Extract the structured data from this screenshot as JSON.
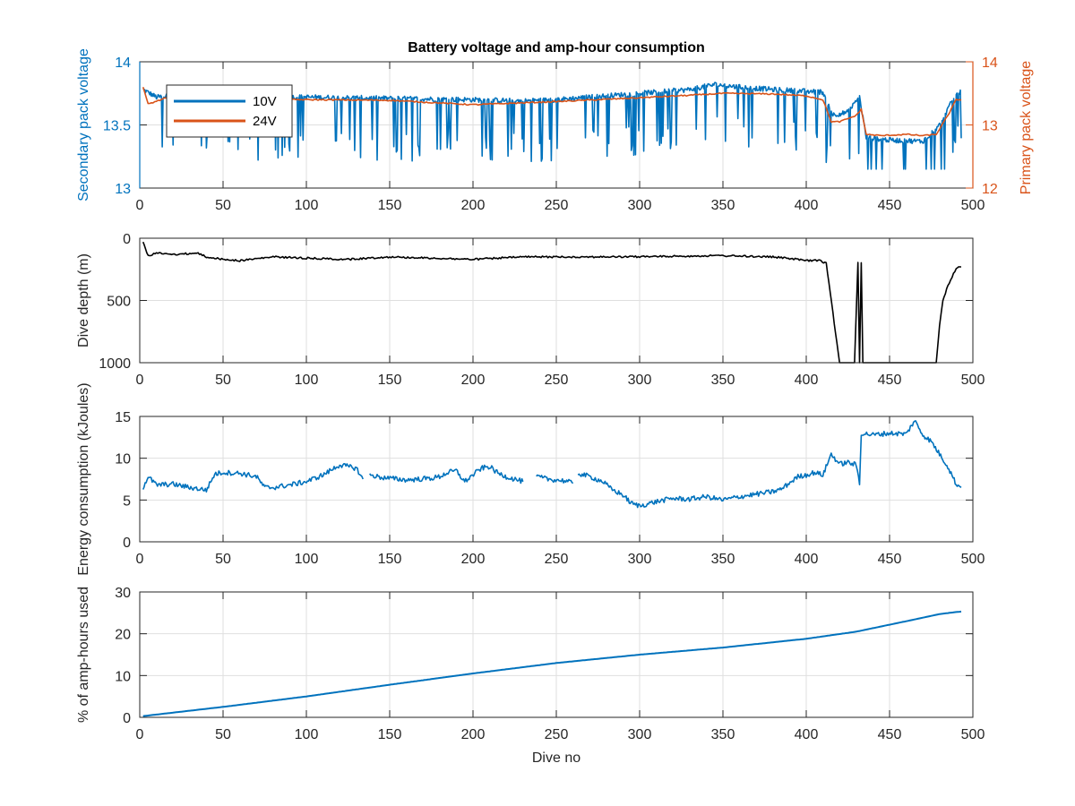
{
  "colors": {
    "blue": "#0072BD",
    "orange": "#D95319",
    "black": "#000000",
    "grid": "#dfdfdf",
    "axis": "#262626"
  },
  "chart_data": [
    {
      "id": "voltage",
      "type": "line",
      "title": "Battery voltage and amp-hour consumption",
      "xlabel": "",
      "ylabel": "Secondary pack voltage",
      "ylabel_right": "Primary pack voltage",
      "xlim": [
        0,
        500
      ],
      "ylim": [
        13,
        14
      ],
      "ylim_right": [
        12,
        14
      ],
      "xticks": [
        0,
        50,
        100,
        150,
        200,
        250,
        300,
        350,
        400,
        450,
        500
      ],
      "yticks": [
        13,
        13.5,
        14
      ],
      "yticks_right": [
        12,
        13,
        14
      ],
      "grid": true,
      "legend": {
        "position": "top-left",
        "entries": [
          "10V",
          "24V"
        ]
      },
      "series": [
        {
          "name": "10V",
          "axis": "left",
          "color": "#0072BD",
          "style": "spiky",
          "x": [
            2,
            10,
            20,
            40,
            60,
            100,
            150,
            200,
            230,
            250,
            300,
            330,
            345,
            360,
            380,
            410,
            416,
            425,
            432,
            436,
            450,
            470,
            480,
            490,
            493
          ],
          "y": [
            13.78,
            13.72,
            13.73,
            13.72,
            13.72,
            13.72,
            13.71,
            13.7,
            13.69,
            13.7,
            13.75,
            13.78,
            13.82,
            13.8,
            13.78,
            13.76,
            13.58,
            13.6,
            13.72,
            13.4,
            13.38,
            13.37,
            13.5,
            13.75,
            13.76
          ],
          "dips": [
            [
              13,
              13.75
            ],
            [
              220,
              13.38
            ],
            [
              330,
              13.42
            ],
            [
              360,
              13.3
            ],
            [
              380,
              13.28
            ],
            [
              430,
              13.38
            ]
          ]
        },
        {
          "name": "24V",
          "axis": "right",
          "color": "#D95319",
          "style": "smooth",
          "x": [
            2,
            5,
            15,
            30,
            60,
            100,
            150,
            200,
            250,
            300,
            330,
            350,
            380,
            400,
            410,
            415,
            420,
            430,
            433,
            436,
            445,
            460,
            470,
            478,
            485,
            490,
            493
          ],
          "y": [
            13.6,
            13.33,
            13.42,
            13.42,
            13.4,
            13.4,
            13.39,
            13.32,
            13.37,
            13.43,
            13.47,
            13.5,
            13.49,
            13.46,
            13.4,
            13.05,
            13.05,
            13.15,
            13.25,
            12.85,
            12.83,
            12.85,
            12.83,
            12.85,
            13.15,
            13.4,
            13.4
          ]
        }
      ]
    },
    {
      "id": "depth",
      "type": "line",
      "title": "",
      "xlabel": "",
      "ylabel": "Dive depth (m)",
      "xlim": [
        0,
        500
      ],
      "ylim": [
        0,
        1000
      ],
      "y_reversed": true,
      "xticks": [
        0,
        50,
        100,
        150,
        200,
        250,
        300,
        350,
        400,
        450,
        500
      ],
      "yticks": [
        0,
        500,
        1000
      ],
      "grid": true,
      "series": [
        {
          "name": "",
          "color": "#000000",
          "x": [
            2,
            5,
            10,
            20,
            35,
            40,
            50,
            60,
            80,
            100,
            125,
            150,
            175,
            200,
            230,
            260,
            290,
            320,
            350,
            380,
            395,
            400,
            408,
            412,
            420,
            422,
            428,
            429,
            431,
            432,
            433,
            434,
            435,
            440,
            450,
            470,
            478,
            480,
            482,
            485,
            490,
            493
          ],
          "y": [
            30,
            140,
            120,
            130,
            120,
            150,
            170,
            180,
            150,
            160,
            170,
            150,
            160,
            170,
            150,
            150,
            150,
            145,
            140,
            150,
            170,
            180,
            180,
            200,
            1000,
            1000,
            1000,
            1000,
            200,
            1000,
            200,
            1000,
            1000,
            1000,
            1000,
            1000,
            1000,
            700,
            500,
            380,
            240,
            230
          ]
        }
      ]
    },
    {
      "id": "energy",
      "type": "line",
      "title": "",
      "xlabel": "",
      "ylabel": "Energy consumption (kJoules)",
      "xlim": [
        0,
        500
      ],
      "ylim": [
        0,
        15
      ],
      "xticks": [
        0,
        50,
        100,
        150,
        200,
        250,
        300,
        350,
        400,
        450,
        500
      ],
      "yticks": [
        0,
        5,
        10,
        15
      ],
      "grid": true,
      "series": [
        {
          "name": "",
          "color": "#0072BD",
          "segments": [
            {
              "x": [
                2,
                5,
                10,
                20,
                30,
                40,
                45,
                50,
                60,
                70,
                75,
                80,
                90,
                100,
                110,
                120,
                125,
                130,
                134
              ],
              "y": [
                6.5,
                7.8,
                6.8,
                6.9,
                6.5,
                6.2,
                8.1,
                8.3,
                8.2,
                7.8,
                6.5,
                6.5,
                6.8,
                7.2,
                8.0,
                9.2,
                9.0,
                8.8,
                7.5
              ]
            },
            {
              "x": [
                138,
                145,
                160,
                175,
                180,
                185,
                190,
                195,
                205,
                210,
                215,
                220,
                230
              ],
              "y": [
                8.0,
                7.7,
                7.4,
                7.6,
                7.8,
                8.3,
                8.5,
                7.2,
                8.8,
                9.0,
                8.2,
                7.8,
                7.2
              ]
            },
            {
              "x": [
                238,
                245,
                255,
                260
              ],
              "y": [
                7.8,
                7.5,
                7.3,
                7.0
              ]
            },
            {
              "x": [
                263,
                270,
                278,
                283,
                290,
                295,
                300,
                310,
                320,
                330,
                340,
                350,
                360,
                370,
                380,
                385,
                395,
                400,
                405,
                410,
                415,
                420,
                425,
                430,
                432,
                433,
                440,
                450,
                460,
                465,
                470,
                475,
                480,
                485,
                490,
                493
              ],
              "y": [
                8.2,
                7.8,
                7.2,
                6.3,
                5.6,
                4.6,
                4.3,
                4.8,
                5.2,
                5.1,
                5.4,
                5.0,
                5.4,
                5.7,
                6.0,
                6.3,
                7.8,
                8.0,
                8.3,
                8.0,
                10.5,
                9.3,
                9.5,
                9.2,
                7.0,
                13.0,
                12.8,
                13.0,
                12.9,
                14.5,
                12.8,
                12.0,
                10.5,
                9.0,
                6.9,
                6.5
              ]
            }
          ]
        }
      ]
    },
    {
      "id": "amphours",
      "type": "line",
      "title": "",
      "xlabel": "Dive no",
      "ylabel": "% of amp-hours used",
      "xlim": [
        0,
        500
      ],
      "ylim": [
        0,
        30
      ],
      "xticks": [
        0,
        50,
        100,
        150,
        200,
        250,
        300,
        350,
        400,
        450,
        500
      ],
      "yticks": [
        0,
        10,
        20,
        30
      ],
      "grid": true,
      "series": [
        {
          "name": "",
          "color": "#0072BD",
          "x": [
            2,
            50,
            100,
            150,
            200,
            250,
            300,
            350,
            400,
            430,
            460,
            480,
            490,
            493
          ],
          "y": [
            0.3,
            2.5,
            5.0,
            7.8,
            10.5,
            13.0,
            15.0,
            16.7,
            18.8,
            20.5,
            23.0,
            24.7,
            25.2,
            25.3
          ]
        }
      ]
    }
  ]
}
